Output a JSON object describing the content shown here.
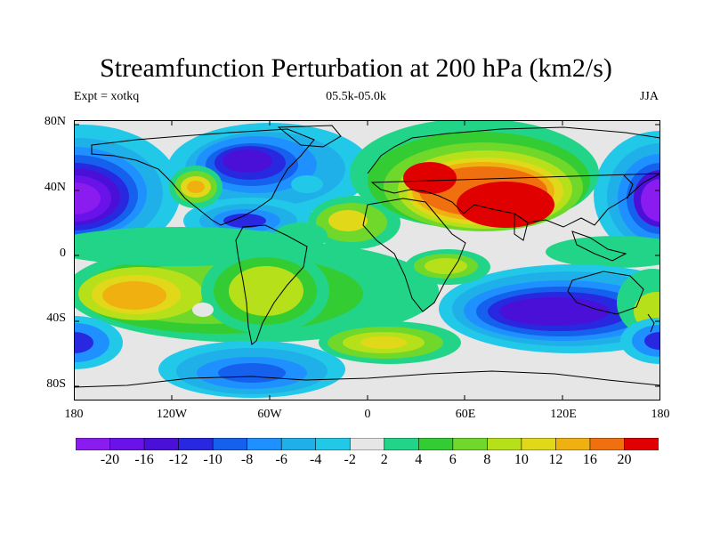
{
  "title": "Streamfunction Perturbation at 200 hPa (km2/s)",
  "subtitle": {
    "left": "Expt = xotkq",
    "center": "05.5k-05.0k",
    "right": "JJA"
  },
  "axes": {
    "lat_ticks": [
      "80N",
      "40N",
      "0",
      "40S",
      "80S"
    ],
    "lon_ticks": [
      "180",
      "120W",
      "60W",
      "0",
      "60E",
      "120E",
      "180"
    ]
  },
  "colorbar": {
    "labels": [
      "-20",
      "-16",
      "-12",
      "-10",
      "-8",
      "-6",
      "-4",
      "-2",
      "2",
      "4",
      "6",
      "8",
      "10",
      "12",
      "16",
      "20"
    ],
    "colors": [
      "#8a1cf0",
      "#6a12ea",
      "#4b10d8",
      "#2828e0",
      "#1560ec",
      "#1e90ff",
      "#1fb0ea",
      "#22c8e8",
      "#e6e6e6",
      "#22d488",
      "#33cc33",
      "#6fd82a",
      "#b5e01a",
      "#e2d81a",
      "#f0b010",
      "#f07010",
      "#e00000"
    ]
  },
  "chart_data": {
    "type": "heatmap",
    "title": "Streamfunction Perturbation at 200 hPa (km2/s)",
    "variable": "streamfunction perturbation",
    "units": "km2/s",
    "levels": [
      -20,
      -16,
      -12,
      -10,
      -8,
      -6,
      -4,
      -2,
      2,
      4,
      6,
      8,
      10,
      12,
      16,
      20
    ],
    "lon_range": [
      -180,
      180
    ],
    "lat_range": [
      -90,
      90
    ],
    "centers": [
      {
        "region": "central Asia / Tibet",
        "lon": 85,
        "lat": 30,
        "value": 20
      },
      {
        "region": "Europe / Caspian",
        "lon": 40,
        "lat": 48,
        "value": 16
      },
      {
        "region": "South Pacific",
        "lon": -140,
        "lat": -28,
        "value": 12
      },
      {
        "region": "South America",
        "lon": -68,
        "lat": -25,
        "value": 10
      },
      {
        "region": "North Pacific",
        "lon": -165,
        "lat": 38,
        "value": -20
      },
      {
        "region": "West Pacific",
        "lon": 175,
        "lat": 30,
        "value": -20
      },
      {
        "region": "North America",
        "lon": -65,
        "lat": 55,
        "value": -16
      },
      {
        "region": "Caribbean",
        "lon": -75,
        "lat": 15,
        "value": -10
      },
      {
        "region": "Indian Ocean / Australia",
        "lon": 105,
        "lat": -35,
        "value": -16
      },
      {
        "region": "South Atlantic",
        "lon": 20,
        "lat": -45,
        "value": 8
      },
      {
        "region": "Antarctic coast",
        "lon": -60,
        "lat": -72,
        "value": -8
      },
      {
        "region": "Mexico",
        "lon": -100,
        "lat": 40,
        "value": 10
      },
      {
        "region": "North Africa",
        "lon": -5,
        "lat": 20,
        "value": 8
      }
    ]
  }
}
